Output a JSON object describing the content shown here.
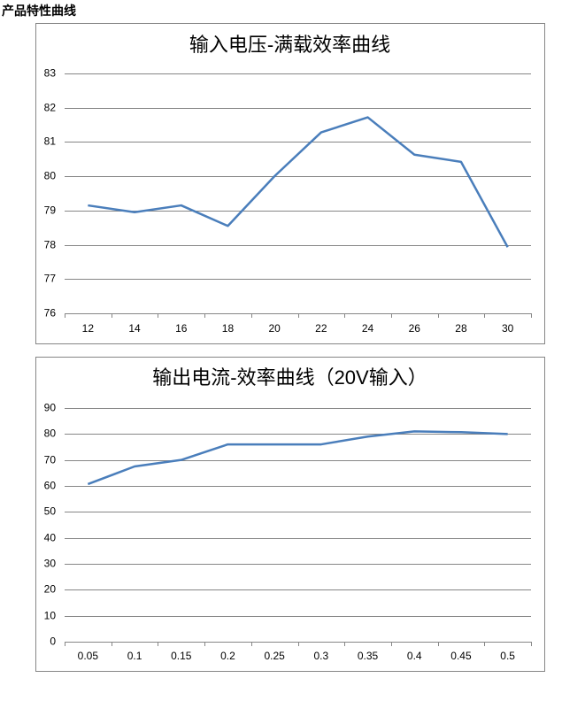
{
  "heading": "产品特性曲线",
  "chart_data": [
    {
      "type": "line",
      "title": "输入电压-满载效率曲线",
      "categories": [
        "12",
        "14",
        "16",
        "18",
        "20",
        "22",
        "24",
        "26",
        "28",
        "30"
      ],
      "values": [
        79.15,
        78.95,
        79.15,
        78.55,
        80.0,
        81.28,
        81.72,
        80.63,
        80.42,
        77.93
      ],
      "color": "#4a7ebb",
      "ylim": [
        76,
        83
      ],
      "yticks": [
        76,
        77,
        78,
        79,
        80,
        81,
        82,
        83
      ],
      "grid": true
    },
    {
      "type": "line",
      "title": "输出电流-效率曲线（20V输入）",
      "categories": [
        "0.05",
        "0.1",
        "0.15",
        "0.2",
        "0.25",
        "0.3",
        "0.35",
        "0.4",
        "0.45",
        "0.5"
      ],
      "values": [
        60.7,
        67.5,
        70,
        76,
        76,
        76,
        79,
        81,
        80.7,
        80
      ],
      "color": "#4a7ebb",
      "ylim": [
        0,
        90
      ],
      "yticks": [
        0,
        10,
        20,
        30,
        40,
        50,
        60,
        70,
        80,
        90
      ],
      "grid": true
    }
  ]
}
